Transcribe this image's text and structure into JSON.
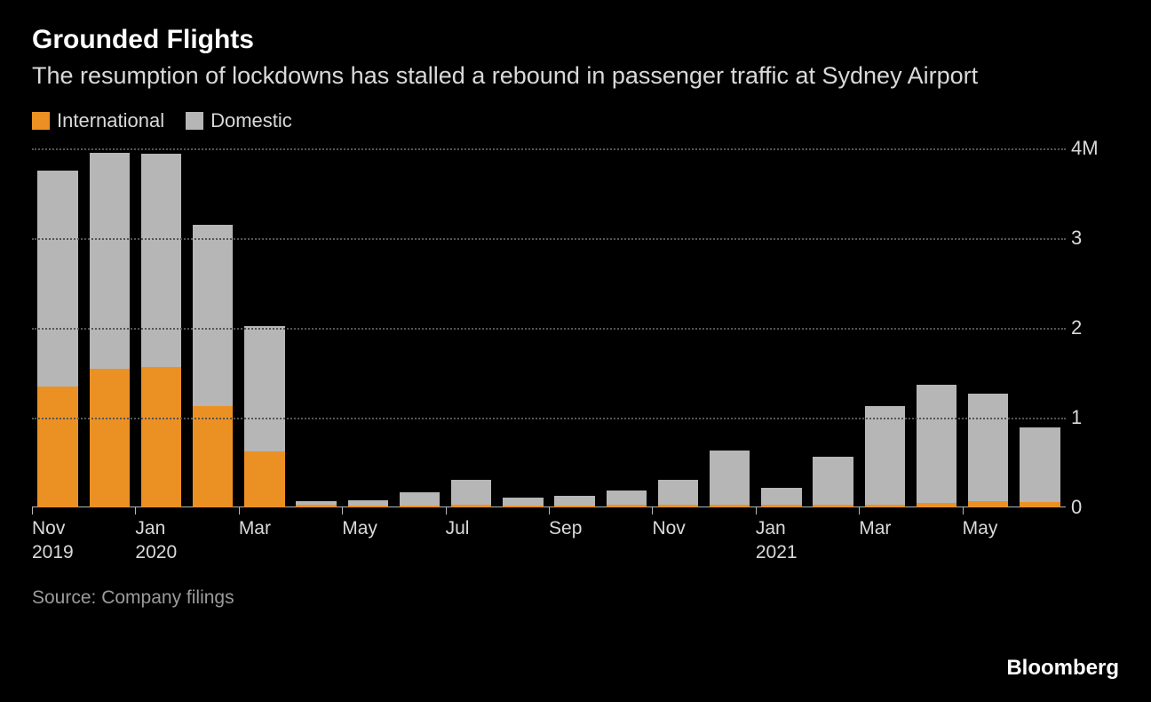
{
  "title": "Grounded Flights",
  "subtitle": "The resumption of lockdowns has stalled a rebound in passenger traffic at Sydney Airport",
  "legend": {
    "international": {
      "label": "International",
      "color": "#eb9124"
    },
    "domestic": {
      "label": "Domestic",
      "color": "#b6b6b6"
    }
  },
  "chart": {
    "type": "stacked-bar",
    "background_color": "#000000",
    "grid_color": "#555555",
    "axis_color": "#b6b6b6",
    "text_color": "#d9d9d9",
    "y": {
      "min": 0,
      "max": 4000000,
      "ticks": [
        {
          "v": 0,
          "label": "0"
        },
        {
          "v": 1000000,
          "label": "1"
        },
        {
          "v": 2000000,
          "label": "2"
        },
        {
          "v": 3000000,
          "label": "3"
        },
        {
          "v": 4000000,
          "label": "4M"
        }
      ]
    },
    "x_labels": [
      {
        "index": 0,
        "line1": "Nov",
        "line2": "2019"
      },
      {
        "index": 2,
        "line1": "Jan",
        "line2": "2020"
      },
      {
        "index": 4,
        "line1": "Mar",
        "line2": ""
      },
      {
        "index": 6,
        "line1": "May",
        "line2": ""
      },
      {
        "index": 8,
        "line1": "Jul",
        "line2": ""
      },
      {
        "index": 10,
        "line1": "Sep",
        "line2": ""
      },
      {
        "index": 12,
        "line1": "Nov",
        "line2": ""
      },
      {
        "index": 14,
        "line1": "Jan",
        "line2": "2021"
      },
      {
        "index": 16,
        "line1": "Mar",
        "line2": ""
      },
      {
        "index": 18,
        "line1": "May",
        "line2": ""
      }
    ],
    "series": [
      {
        "month": "Nov 2019",
        "international": 1350000,
        "domestic": 2400000
      },
      {
        "month": "Dec 2019",
        "international": 1550000,
        "domestic": 2400000
      },
      {
        "month": "Jan 2020",
        "international": 1570000,
        "domestic": 2370000
      },
      {
        "month": "Feb 2020",
        "international": 1130000,
        "domestic": 2020000
      },
      {
        "month": "Mar 2020",
        "international": 620000,
        "domestic": 1400000
      },
      {
        "month": "Apr 2020",
        "international": 30000,
        "domestic": 40000
      },
      {
        "month": "May 2020",
        "international": 25000,
        "domestic": 55000
      },
      {
        "month": "Jun 2020",
        "international": 25000,
        "domestic": 140000
      },
      {
        "month": "Jul 2020",
        "international": 30000,
        "domestic": 280000
      },
      {
        "month": "Aug 2020",
        "international": 25000,
        "domestic": 90000
      },
      {
        "month": "Sep 2020",
        "international": 25000,
        "domestic": 100000
      },
      {
        "month": "Oct 2020",
        "international": 30000,
        "domestic": 160000
      },
      {
        "month": "Nov 2020",
        "international": 30000,
        "domestic": 280000
      },
      {
        "month": "Dec 2020",
        "international": 35000,
        "domestic": 600000
      },
      {
        "month": "Jan 2021",
        "international": 30000,
        "domestic": 190000
      },
      {
        "month": "Feb 2021",
        "international": 30000,
        "domestic": 540000
      },
      {
        "month": "Mar 2021",
        "international": 35000,
        "domestic": 1090000
      },
      {
        "month": "Apr 2021",
        "international": 50000,
        "domestic": 1320000
      },
      {
        "month": "May 2021",
        "international": 70000,
        "domestic": 1200000
      },
      {
        "month": "Jun 2021",
        "international": 65000,
        "domestic": 830000
      }
    ]
  },
  "source": "Source: Company filings",
  "brand": "Bloomberg"
}
